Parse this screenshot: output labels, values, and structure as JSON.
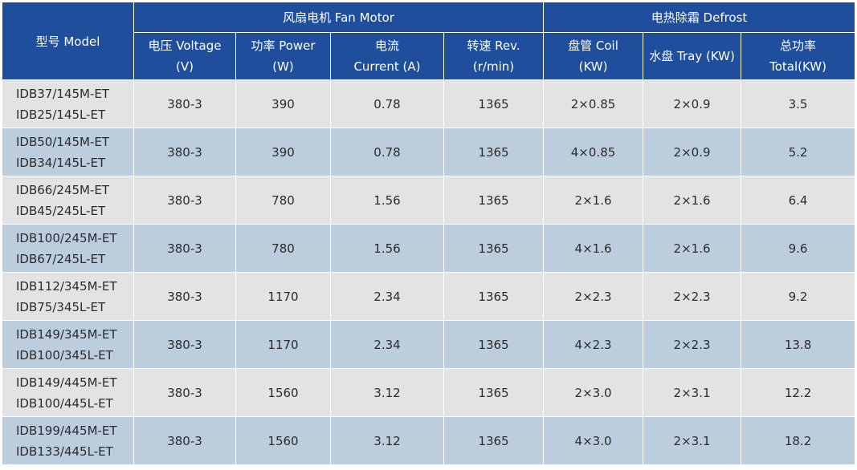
{
  "header": {
    "model": "型号 Model",
    "fan_group": "风扇电机 Fan Motor",
    "defrost_group": "电热除霜 Defrost",
    "voltage": [
      "电压 Voltage",
      "(V)"
    ],
    "power": [
      "功率 Power",
      "(W)"
    ],
    "current": [
      "电流",
      "Current (A)"
    ],
    "rev": [
      "转速 Rev.",
      "(r/min)"
    ],
    "coil": [
      "盘管 Coil",
      "(KW)"
    ],
    "tray": "水盘 Tray (KW)",
    "total": [
      "总功率",
      "Total(KW)"
    ]
  },
  "rows": [
    {
      "model": [
        "IDB37/145M-ET",
        "IDB25/145L-ET"
      ],
      "voltage": "380-3",
      "power": "390",
      "current": "0.78",
      "rev": "1365",
      "coil": "2×0.85",
      "tray": "2×0.9",
      "total": "3.5"
    },
    {
      "model": [
        "IDB50/145M-ET",
        "IDB34/145L-ET"
      ],
      "voltage": "380-3",
      "power": "390",
      "current": "0.78",
      "rev": "1365",
      "coil": "4×0.85",
      "tray": "2×0.9",
      "total": "5.2"
    },
    {
      "model": [
        "IDB66/245M-ET",
        "IDB45/245L-ET"
      ],
      "voltage": "380-3",
      "power": "780",
      "current": "1.56",
      "rev": "1365",
      "coil": "2×1.6",
      "tray": "2×1.6",
      "total": "6.4"
    },
    {
      "model": [
        "IDB100/245M-ET",
        "IDB67/245L-ET"
      ],
      "voltage": "380-3",
      "power": "780",
      "current": "1.56",
      "rev": "1365",
      "coil": "4×1.6",
      "tray": "2×1.6",
      "total": "9.6"
    },
    {
      "model": [
        "IDB112/345M-ET",
        "IDB75/345L-ET"
      ],
      "voltage": "380-3",
      "power": "1170",
      "current": "2.34",
      "rev": "1365",
      "coil": "2×2.3",
      "tray": "2×2.3",
      "total": "9.2"
    },
    {
      "model": [
        "IDB149/345M-ET",
        "IDB100/345L-ET"
      ],
      "voltage": "380-3",
      "power": "1170",
      "current": "2.34",
      "rev": "1365",
      "coil": "4×2.3",
      "tray": "2×2.3",
      "total": "13.8"
    },
    {
      "model": [
        "IDB149/445M-ET",
        "IDB100/445L-ET"
      ],
      "voltage": "380-3",
      "power": "1560",
      "current": "3.12",
      "rev": "1365",
      "coil": "2×3.0",
      "tray": "2×3.1",
      "total": "12.2"
    },
    {
      "model": [
        "IDB199/445M-ET",
        "IDB133/445L-ET"
      ],
      "voltage": "380-3",
      "power": "1560",
      "current": "3.12",
      "rev": "1365",
      "coil": "4×3.0",
      "tray": "2×3.1",
      "total": "18.2"
    }
  ]
}
